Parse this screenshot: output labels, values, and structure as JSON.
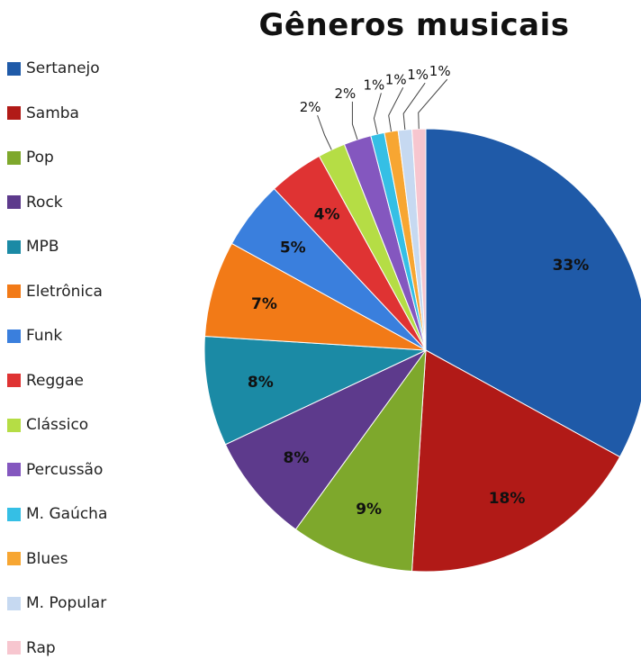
{
  "chart_data": {
    "type": "pie",
    "title": "Gêneros musicais",
    "legend_position": "left",
    "slices": [
      {
        "label": "Sertanejo",
        "value": 33,
        "display": "33%",
        "color": "#1f5aa8"
      },
      {
        "label": "Samba",
        "value": 18,
        "display": "18%",
        "color": "#b11a17"
      },
      {
        "label": "Pop",
        "value": 9,
        "display": "9%",
        "color": "#7ea82c"
      },
      {
        "label": "Rock",
        "value": 8,
        "display": "8%",
        "color": "#5d3a8c"
      },
      {
        "label": "MPB",
        "value": 8,
        "display": "8%",
        "color": "#1b8aa5"
      },
      {
        "label": "Eletrônica",
        "value": 7,
        "display": "7%",
        "color": "#f27a17"
      },
      {
        "label": "Funk",
        "value": 5,
        "display": "5%",
        "color": "#3a7fdd"
      },
      {
        "label": "Reggae",
        "value": 4,
        "display": "4%",
        "color": "#df3333"
      },
      {
        "label": "Clássico",
        "value": 2,
        "display": "2%",
        "color": "#b5dd45"
      },
      {
        "label": "Percussão",
        "value": 2,
        "display": "2%",
        "color": "#8457bf"
      },
      {
        "label": "M. Gaúcha",
        "value": 1,
        "display": "1%",
        "color": "#35bfe5"
      },
      {
        "label": "Blues",
        "value": 1,
        "display": "1%",
        "color": "#f7a632"
      },
      {
        "label": "M. Popular",
        "value": 1,
        "display": "1%",
        "color": "#c6d9f1"
      },
      {
        "label": "Rap",
        "value": 1,
        "display": "1%",
        "color": "#f7c6cf"
      }
    ]
  }
}
